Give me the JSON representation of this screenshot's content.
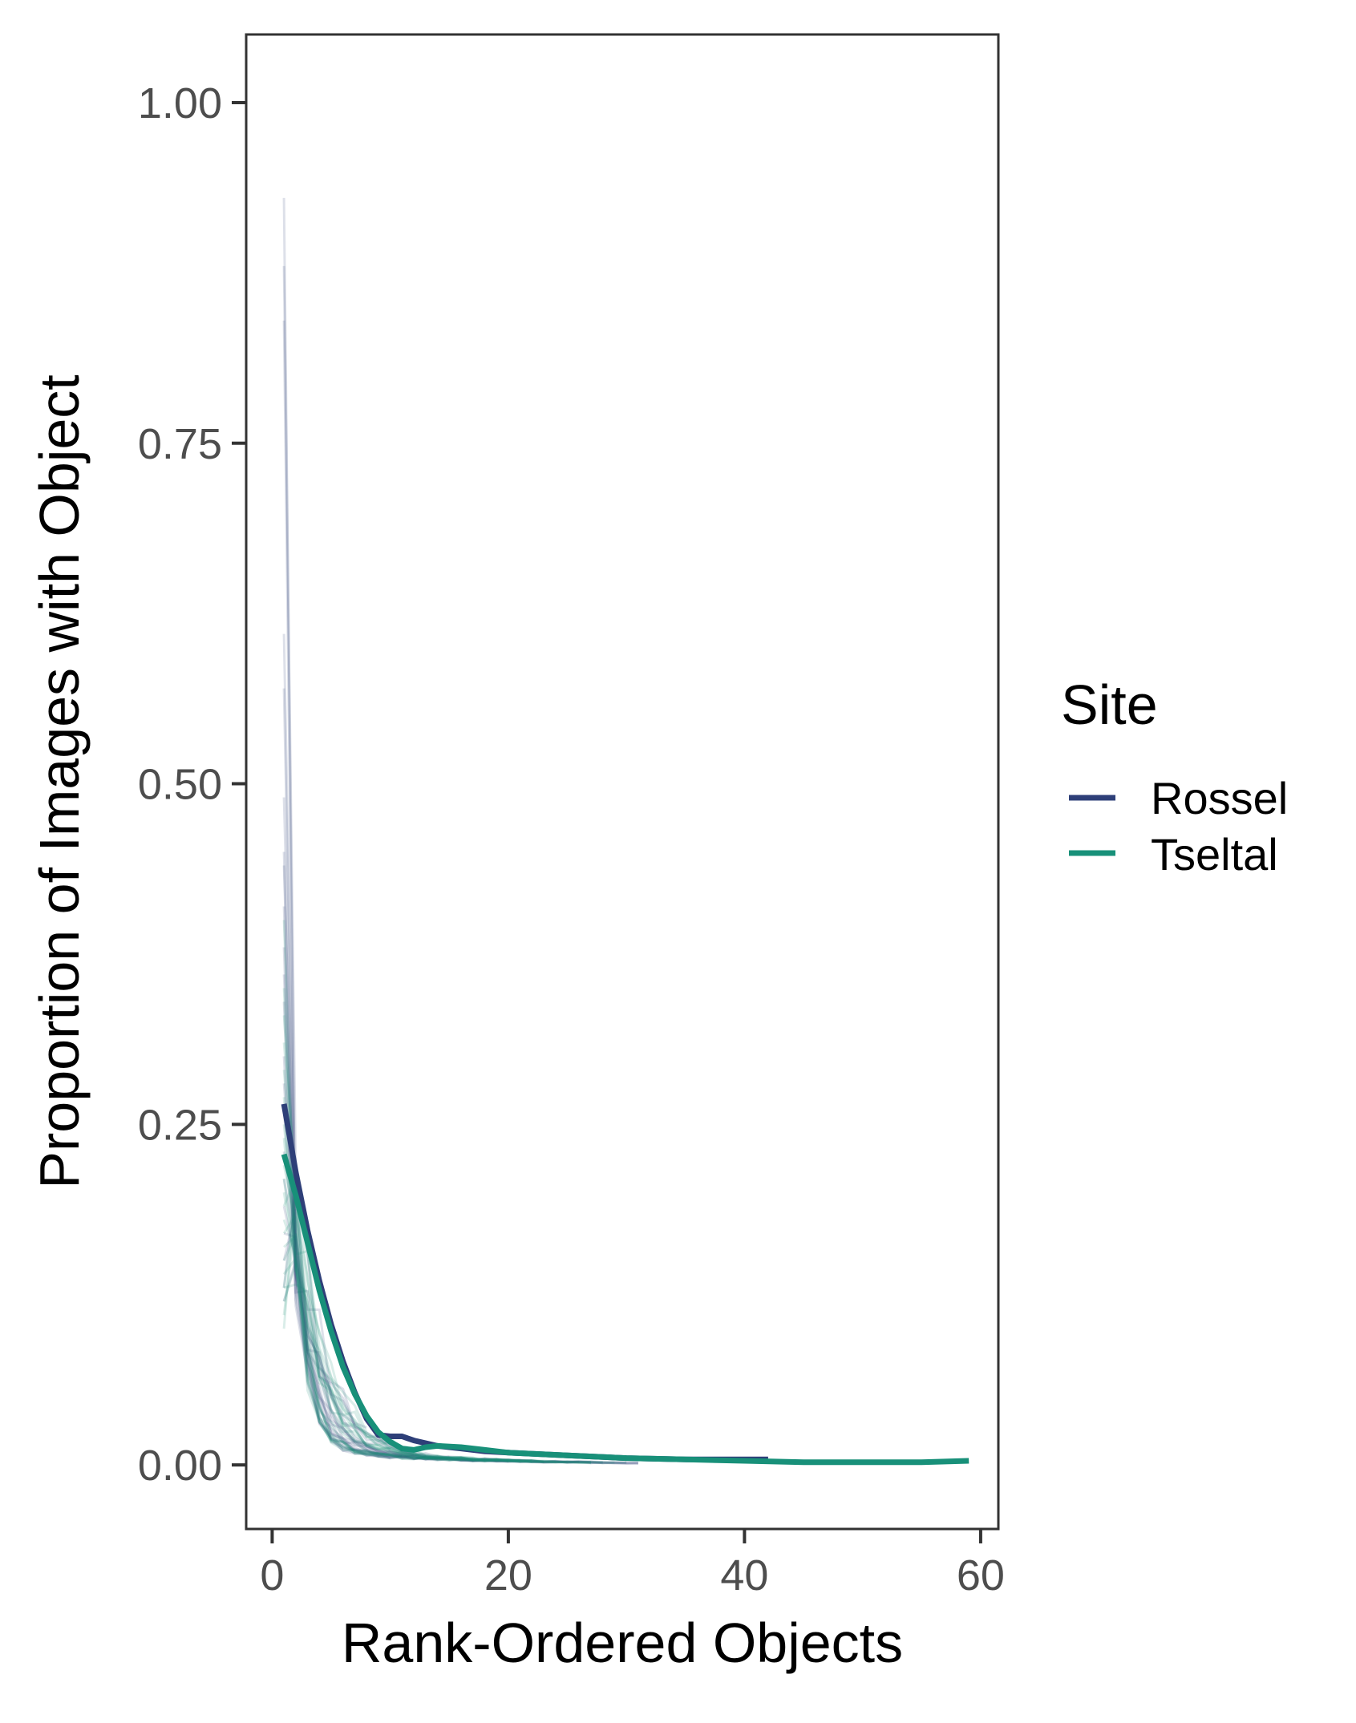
{
  "chart_data": {
    "type": "line",
    "title": "",
    "xlabel": "Rank-Ordered Objects",
    "ylabel": "Proportion of Images with Object",
    "xlim": [
      -2.2,
      61.5
    ],
    "ylim": [
      -0.047,
      1.05
    ],
    "x_ticks": [
      0,
      20,
      40,
      60
    ],
    "x_tick_labels": [
      "0",
      "20",
      "40",
      "60"
    ],
    "y_ticks": [
      0,
      0.25,
      0.5,
      0.75,
      1.0
    ],
    "y_tick_labels": [
      "0.00",
      "0.25",
      "0.50",
      "0.75",
      "1.00"
    ],
    "grid": false,
    "legend": {
      "title": "Site",
      "position": "right"
    },
    "series": [
      {
        "name": "Rossel",
        "color": "#2e3f78",
        "x": [
          1,
          2,
          3,
          4,
          5,
          6,
          7,
          8,
          9,
          10,
          11,
          12,
          14,
          16,
          18,
          20,
          25,
          30,
          35,
          40,
          42
        ],
        "y": [
          0.265,
          0.215,
          0.172,
          0.135,
          0.103,
          0.076,
          0.053,
          0.034,
          0.022,
          0.021,
          0.021,
          0.018,
          0.014,
          0.012,
          0.01,
          0.009,
          0.007,
          0.005,
          0.004,
          0.004,
          0.004
        ]
      },
      {
        "name": "Tseltal",
        "color": "#189079",
        "x": [
          1,
          2,
          3,
          4,
          5,
          6,
          7,
          8,
          9,
          10,
          11,
          12,
          13,
          14,
          16,
          18,
          20,
          25,
          30,
          35,
          40,
          45,
          50,
          55,
          59
        ],
        "y": [
          0.228,
          0.198,
          0.163,
          0.128,
          0.098,
          0.072,
          0.052,
          0.036,
          0.024,
          0.017,
          0.012,
          0.011,
          0.013,
          0.014,
          0.013,
          0.011,
          0.009,
          0.007,
          0.005,
          0.004,
          0.003,
          0.002,
          0.002,
          0.002,
          0.003
        ]
      }
    ]
  },
  "individual_traces": {
    "description": "",
    "count_per_site": 22
  }
}
